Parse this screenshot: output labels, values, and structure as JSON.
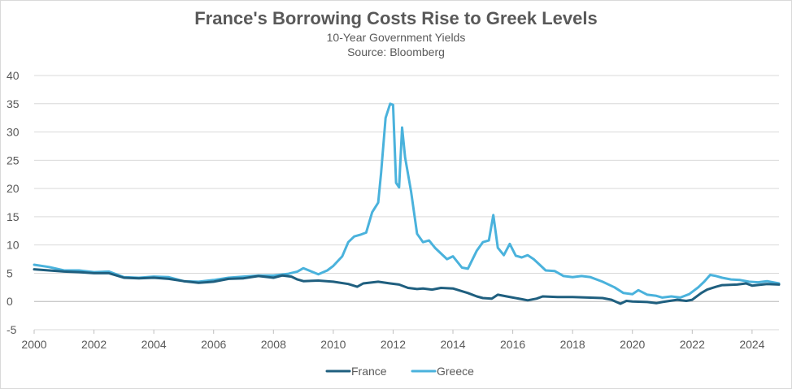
{
  "chart_data": {
    "type": "line",
    "title": "France's Borrowing Costs Rise to Greek Levels",
    "subtitle": "10-Year Government Yields",
    "source": "Source: Bloomberg",
    "xlabel": "",
    "ylabel": "",
    "xlim": [
      2000,
      2024.9
    ],
    "ylim": [
      -5,
      40
    ],
    "x_ticks": [
      "2000",
      "2002",
      "2004",
      "2006",
      "2008",
      "2010",
      "2012",
      "2014",
      "2016",
      "2018",
      "2020",
      "2022",
      "2024"
    ],
    "y_ticks": [
      "-5",
      "0",
      "5",
      "10",
      "15",
      "20",
      "25",
      "30",
      "35",
      "40"
    ],
    "grid": "horizontal",
    "legend_position": "bottom",
    "series": [
      {
        "name": "France",
        "color": "#1f5f7f",
        "x": [
          2000.0,
          2000.5,
          2001.0,
          2001.5,
          2002.0,
          2002.5,
          2003.0,
          2003.5,
          2004.0,
          2004.5,
          2005.0,
          2005.5,
          2006.0,
          2006.5,
          2007.0,
          2007.5,
          2008.0,
          2008.3,
          2008.6,
          2008.8,
          2009.0,
          2009.5,
          2010.0,
          2010.5,
          2010.8,
          2011.0,
          2011.5,
          2011.9,
          2012.2,
          2012.5,
          2012.8,
          2013.0,
          2013.3,
          2013.6,
          2014.0,
          2014.5,
          2014.8,
          2015.0,
          2015.3,
          2015.5,
          2015.8,
          2016.0,
          2016.3,
          2016.5,
          2016.8,
          2017.0,
          2017.5,
          2018.0,
          2018.5,
          2019.0,
          2019.3,
          2019.6,
          2019.8,
          2020.0,
          2020.5,
          2020.8,
          2021.0,
          2021.5,
          2021.8,
          2022.0,
          2022.3,
          2022.5,
          2022.8,
          2023.0,
          2023.5,
          2023.8,
          2024.0,
          2024.5,
          2024.9
        ],
        "y": [
          5.7,
          5.5,
          5.3,
          5.2,
          5.0,
          5.0,
          4.2,
          4.1,
          4.2,
          4.0,
          3.6,
          3.3,
          3.5,
          4.0,
          4.1,
          4.5,
          4.2,
          4.6,
          4.4,
          3.9,
          3.6,
          3.7,
          3.5,
          3.1,
          2.6,
          3.2,
          3.5,
          3.2,
          3.0,
          2.4,
          2.2,
          2.3,
          2.1,
          2.4,
          2.3,
          1.5,
          0.9,
          0.6,
          0.5,
          1.2,
          0.9,
          0.7,
          0.4,
          0.2,
          0.5,
          0.9,
          0.8,
          0.8,
          0.7,
          0.6,
          0.3,
          -0.4,
          0.1,
          0.0,
          -0.1,
          -0.3,
          -0.1,
          0.3,
          0.1,
          0.3,
          1.5,
          2.1,
          2.6,
          2.9,
          3.0,
          3.2,
          2.8,
          3.1,
          3.0
        ]
      },
      {
        "name": "Greece",
        "color": "#4ab2dc",
        "x": [
          2000.0,
          2000.5,
          2001.0,
          2001.5,
          2002.0,
          2002.5,
          2003.0,
          2003.5,
          2004.0,
          2004.5,
          2005.0,
          2005.5,
          2006.0,
          2006.5,
          2007.0,
          2007.5,
          2008.0,
          2008.5,
          2008.8,
          2009.0,
          2009.5,
          2009.8,
          2010.0,
          2010.3,
          2010.5,
          2010.7,
          2010.9,
          2011.1,
          2011.3,
          2011.5,
          2011.6,
          2011.75,
          2011.9,
          2012.0,
          2012.1,
          2012.2,
          2012.3,
          2012.4,
          2012.6,
          2012.8,
          2013.0,
          2013.2,
          2013.4,
          2013.6,
          2013.8,
          2014.0,
          2014.3,
          2014.5,
          2014.8,
          2015.0,
          2015.2,
          2015.35,
          2015.5,
          2015.7,
          2015.9,
          2016.1,
          2016.3,
          2016.5,
          2016.7,
          2016.9,
          2017.1,
          2017.4,
          2017.7,
          2018.0,
          2018.3,
          2018.6,
          2019.0,
          2019.4,
          2019.7,
          2020.0,
          2020.2,
          2020.5,
          2020.8,
          2021.0,
          2021.3,
          2021.6,
          2021.9,
          2022.2,
          2022.4,
          2022.6,
          2022.8,
          2023.0,
          2023.3,
          2023.6,
          2023.9,
          2024.2,
          2024.5,
          2024.9
        ],
        "y": [
          6.5,
          6.1,
          5.5,
          5.5,
          5.2,
          5.3,
          4.3,
          4.2,
          4.4,
          4.3,
          3.6,
          3.5,
          3.8,
          4.2,
          4.4,
          4.6,
          4.6,
          4.9,
          5.3,
          5.9,
          4.8,
          5.5,
          6.3,
          8.0,
          10.5,
          11.5,
          11.8,
          12.2,
          15.8,
          17.5,
          22.8,
          32.5,
          35.0,
          34.8,
          21.0,
          20.2,
          30.8,
          25.5,
          19.5,
          12.0,
          10.5,
          10.8,
          9.5,
          8.5,
          7.5,
          8.0,
          6.0,
          5.8,
          9.0,
          10.5,
          10.8,
          15.3,
          9.5,
          8.2,
          10.2,
          8.1,
          7.8,
          8.2,
          7.5,
          6.5,
          5.5,
          5.4,
          4.5,
          4.3,
          4.5,
          4.3,
          3.5,
          2.5,
          1.5,
          1.3,
          2.0,
          1.2,
          1.0,
          0.7,
          0.9,
          0.7,
          1.3,
          2.5,
          3.5,
          4.7,
          4.5,
          4.2,
          3.9,
          3.8,
          3.5,
          3.4,
          3.6,
          3.2
        ]
      }
    ]
  }
}
